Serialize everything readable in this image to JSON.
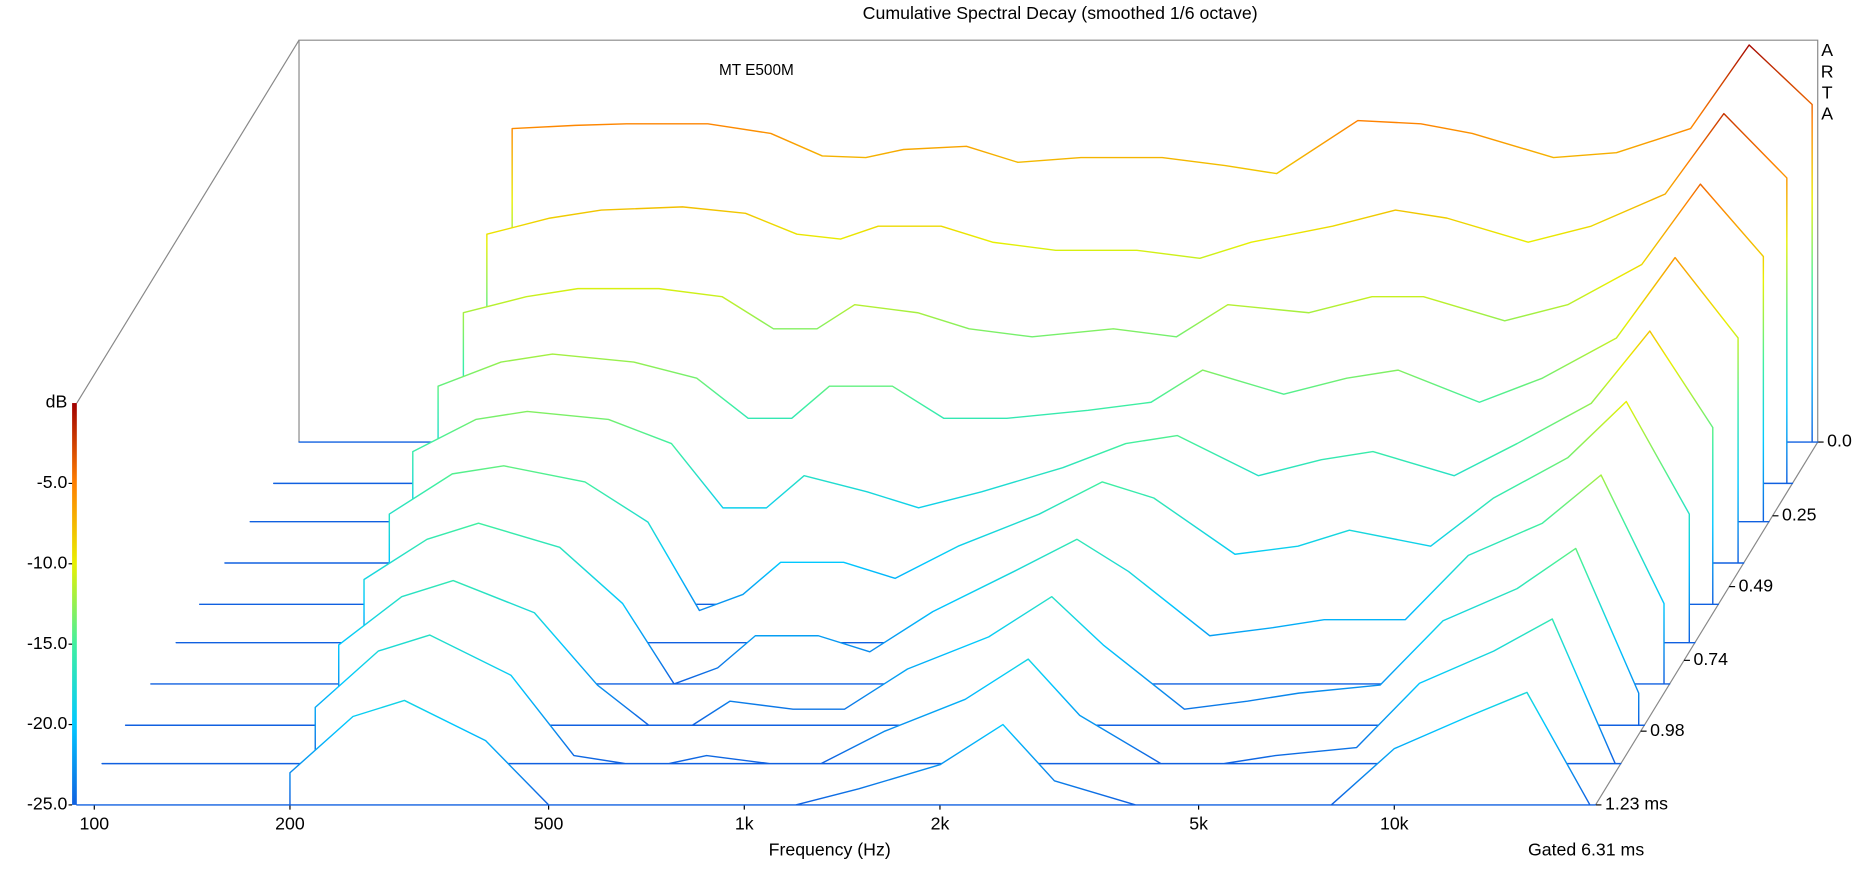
{
  "chart_data": {
    "type": "waterfall",
    "title": "Cumulative Spectral Decay (smoothed 1/6 octave)",
    "annotation": "MT E500M",
    "brand": "ARTA",
    "xlabel": "Frequency (Hz)",
    "gate_label": "Gated 6.31 ms",
    "colorbar_label": "dB",
    "log_x": true,
    "xlim": [
      94,
      20400
    ],
    "xticks": [
      100,
      200,
      500,
      {
        "value": 1000,
        "label": "1k"
      },
      {
        "value": 2000,
        "label": "2k"
      },
      {
        "value": 5000,
        "label": "5k"
      },
      {
        "value": 10000,
        "label": "10k"
      }
    ],
    "ylim": [
      -25,
      0
    ],
    "yticks": [
      {
        "value": -5,
        "label": "-5.0"
      },
      {
        "value": -10,
        "label": "-10.0"
      },
      {
        "value": -15,
        "label": "-15.0"
      },
      {
        "value": -20,
        "label": "-20.0"
      },
      {
        "value": -25,
        "label": "-25.0"
      }
    ],
    "tlim": [
      0,
      1.23
    ],
    "tticks": [
      {
        "value": 0,
        "label": "0.0"
      },
      0.25,
      0.49,
      0.74,
      0.98,
      {
        "value": 1.23,
        "label": "1.23 ms"
      }
    ],
    "colormap": [
      "#1060e0",
      "#00c8ff",
      "#40f0a0",
      "#e8f000",
      "#ff8000",
      "#a00000"
    ],
    "frequencies": [
      200,
      250,
      300,
      400,
      500,
      600,
      700,
      800,
      1000,
      1200,
      1500,
      2000,
      2500,
      3000,
      4000,
      5000,
      6000,
      8000,
      10000,
      13000,
      16000,
      20000
    ],
    "times": [
      0,
      0.14,
      0.27,
      0.41,
      0.55,
      0.68,
      0.82,
      0.96,
      1.09,
      1.23
    ],
    "series": [
      {
        "values": [
          -5.5,
          -5.3,
          -5.2,
          -5.2,
          -5.8,
          -7.2,
          -7.3,
          -6.8,
          -6.6,
          -7.6,
          -7.3,
          -7.3,
          -7.8,
          -8.3,
          -5.0,
          -5.2,
          -5.8,
          -7.3,
          -7.0,
          -5.5,
          -0.3,
          -4.0
        ]
      },
      {
        "values": [
          -9.5,
          -8.5,
          -8,
          -7.8,
          -8.2,
          -9.5,
          -9.8,
          -9,
          -9,
          -10,
          -10.5,
          -10.5,
          -11,
          -10,
          -9,
          -8,
          -8.5,
          -10,
          -9,
          -7,
          -2,
          -6
        ]
      },
      {
        "values": [
          -12,
          -11,
          -10.5,
          -10.5,
          -11,
          -13,
          -13,
          -11.5,
          -12,
          -13,
          -13.5,
          -13,
          -13.5,
          -11.5,
          -12,
          -11,
          -11,
          -12.5,
          -11.5,
          -9,
          -4,
          -8.5
        ]
      },
      {
        "values": [
          -14,
          -12.5,
          -12,
          -12.5,
          -13.5,
          -16,
          -16,
          -14,
          -14,
          -16,
          -16,
          -15.5,
          -15,
          -13,
          -14.5,
          -13.5,
          -13,
          -15,
          -13.5,
          -11,
          -6,
          -11
        ]
      },
      {
        "values": [
          -15.5,
          -13.5,
          -13,
          -13.5,
          -15,
          -19,
          -19,
          -17,
          -18,
          -19,
          -18,
          -16.5,
          -15,
          -14.5,
          -17,
          -16,
          -15.5,
          -17,
          -15,
          -12.5,
          -8,
          -14
        ]
      },
      {
        "values": [
          -17,
          -14.5,
          -14,
          -15,
          -17.5,
          -23,
          -22,
          -20,
          -20,
          -21,
          -19,
          -17,
          -15,
          -16,
          -19.5,
          -19,
          -18,
          -19,
          -16,
          -13.5,
          -10,
          -17
        ]
      },
      {
        "values": [
          -18.5,
          -16,
          -15,
          -16.5,
          -20,
          -25,
          -24,
          -22,
          -22,
          -23,
          -20.5,
          -18,
          -16,
          -18,
          -22,
          -21.5,
          -21,
          -21,
          -17,
          -15,
          -12,
          -20
        ]
      },
      {
        "values": [
          -20,
          -17,
          -16,
          -18,
          -22.5,
          -25,
          -25,
          -23.5,
          -24,
          -24,
          -21.5,
          -19.5,
          -17,
          -20,
          -24,
          -23.5,
          -23,
          -22.5,
          -18.5,
          -16.5,
          -14,
          -23
        ]
      },
      {
        "values": [
          -21.5,
          -18,
          -17,
          -19.5,
          -24.5,
          -25,
          -25,
          -24.5,
          -25,
          -25,
          -23,
          -21,
          -18.5,
          -22,
          -25,
          -25,
          -24.5,
          -24,
          -20,
          -18,
          -16,
          -25
        ]
      },
      {
        "values": [
          -23,
          -19.5,
          -18.5,
          -21,
          -25,
          -25,
          -25,
          -25,
          -25,
          -25,
          -24,
          -22.5,
          -20,
          -23.5,
          -25,
          -25,
          -25,
          -25,
          -21.5,
          -19.5,
          -18,
          -25
        ]
      }
    ]
  }
}
